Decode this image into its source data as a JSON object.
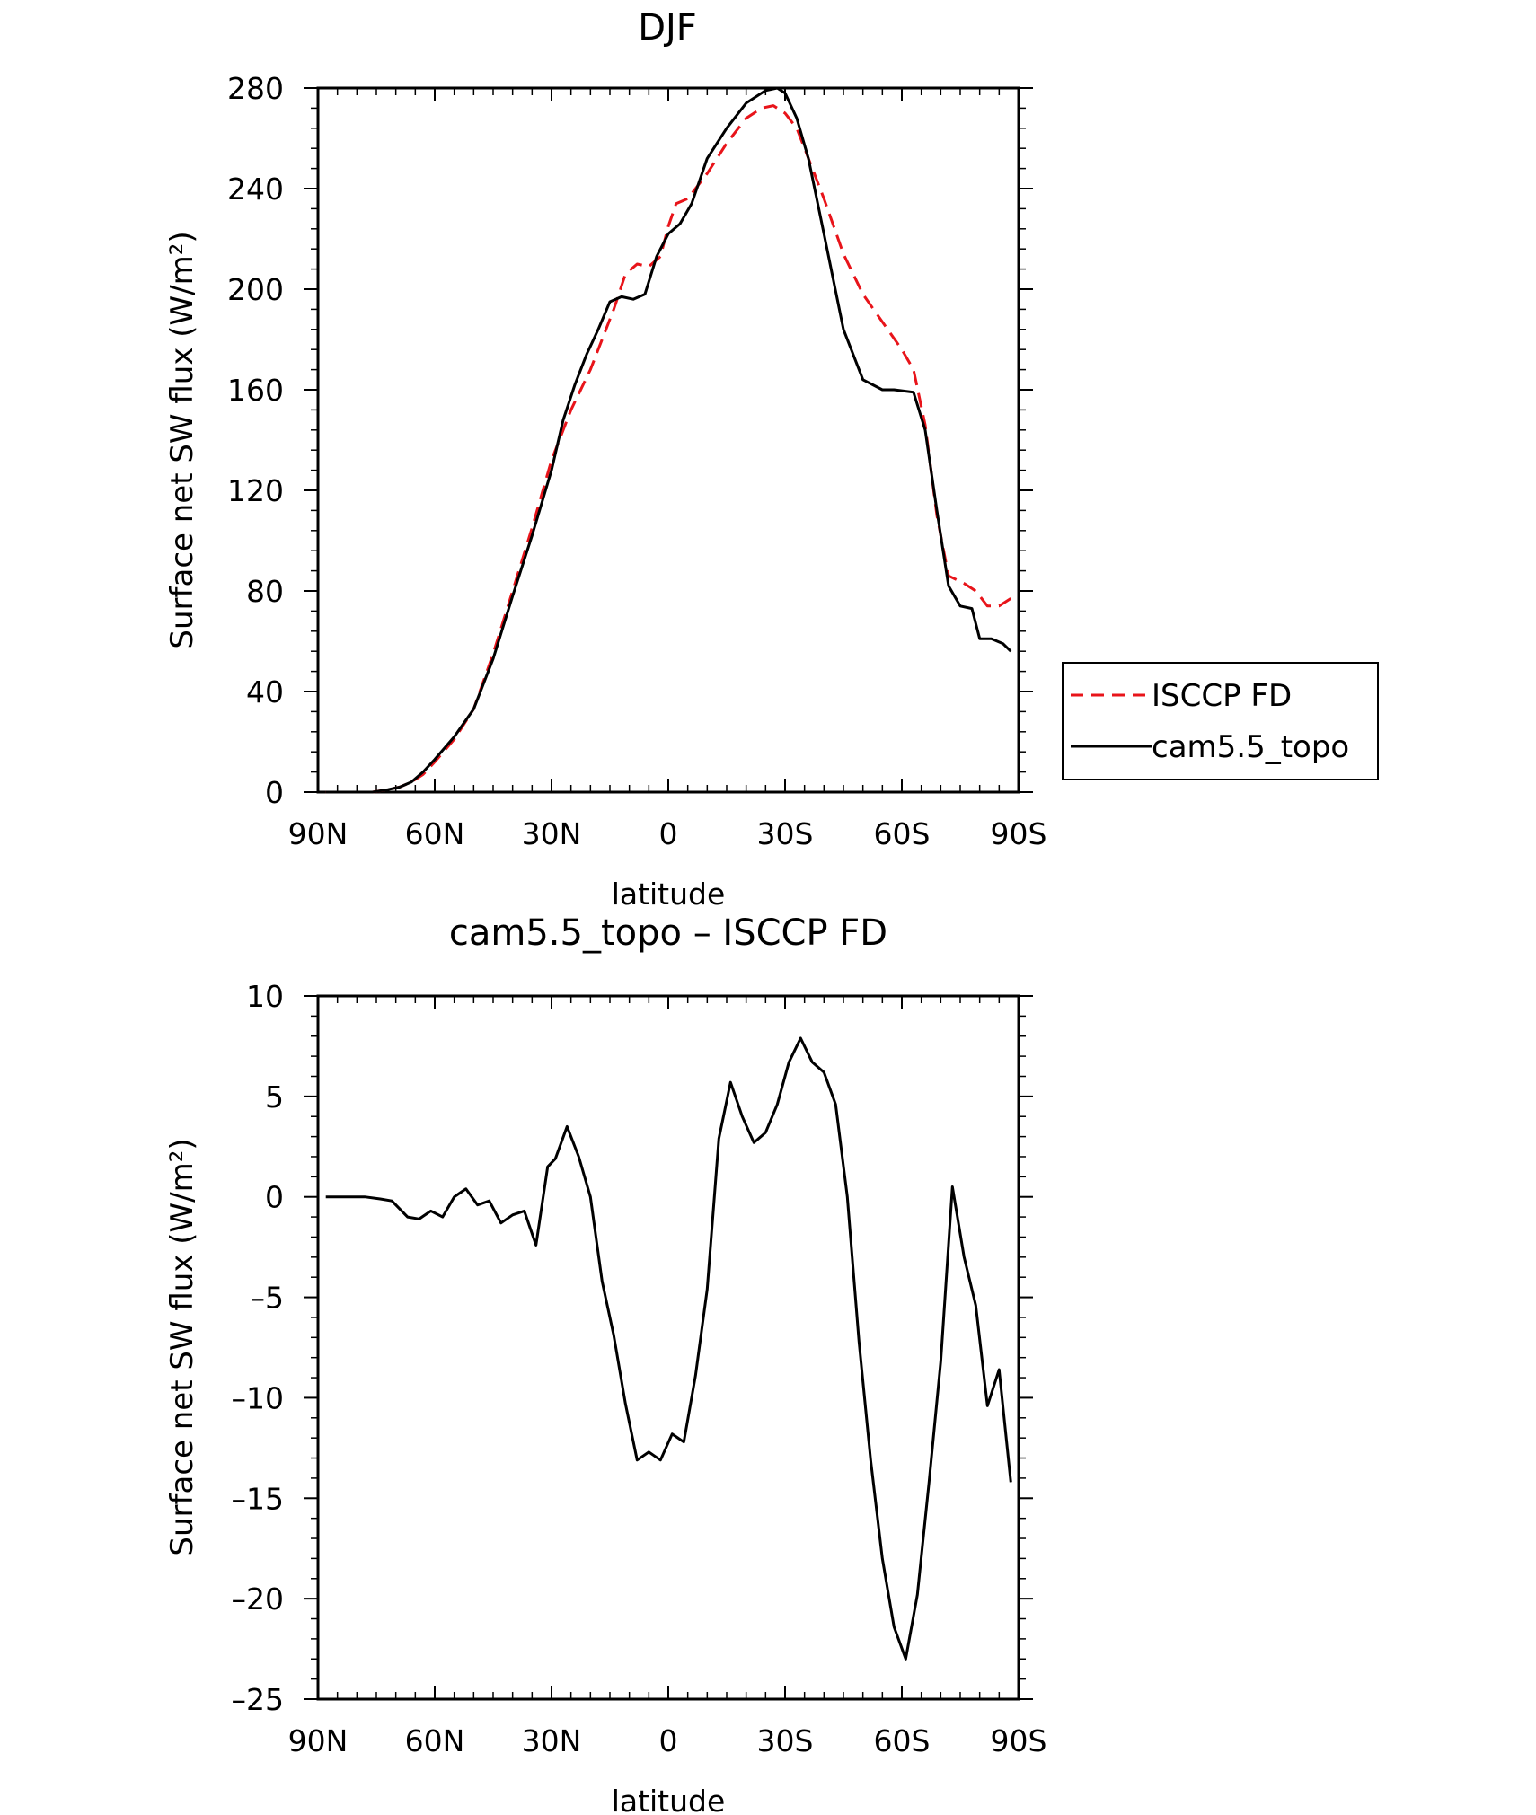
{
  "chart_data": [
    {
      "type": "line",
      "title": "DJF",
      "xlabel": "latitude",
      "ylabel": "Surface net SW flux (W/m²)",
      "xlim": [
        90,
        -90
      ],
      "ylim": [
        0,
        280
      ],
      "x_ticks": [
        {
          "value": 90,
          "label": "90N"
        },
        {
          "value": 60,
          "label": "60N"
        },
        {
          "value": 30,
          "label": "30N"
        },
        {
          "value": 0,
          "label": "0"
        },
        {
          "value": -30,
          "label": "30S"
        },
        {
          "value": -60,
          "label": "60S"
        },
        {
          "value": -90,
          "label": "90S"
        }
      ],
      "y_ticks": [
        {
          "value": 0,
          "label": "0"
        },
        {
          "value": 40,
          "label": "40"
        },
        {
          "value": 80,
          "label": "80"
        },
        {
          "value": 120,
          "label": "120"
        },
        {
          "value": 160,
          "label": "160"
        },
        {
          "value": 200,
          "label": "200"
        },
        {
          "value": 240,
          "label": "240"
        },
        {
          "value": 280,
          "label": "280"
        }
      ],
      "legend": {
        "position": "right"
      },
      "series": [
        {
          "name": "ISCCP FD",
          "color": "#e8141a",
          "dash": "dashed",
          "x": [
            88,
            84,
            80,
            76,
            72,
            69,
            66,
            63,
            60,
            55,
            50,
            45,
            40,
            35,
            30,
            25,
            20,
            17,
            14,
            11,
            8,
            5,
            2,
            0,
            -2,
            -5,
            -10,
            -15,
            -20,
            -24,
            -27,
            -30,
            -33,
            -36,
            -40,
            -45,
            -50,
            -55,
            -60,
            -63,
            -66,
            -69,
            -72,
            -76,
            -79,
            -82,
            -85,
            -88
          ],
          "y": [
            0,
            0,
            0,
            0,
            1,
            2,
            4,
            7,
            12,
            21,
            33,
            55,
            80,
            105,
            132,
            152,
            168,
            180,
            192,
            206,
            210,
            209,
            213,
            225,
            234,
            236,
            246,
            258,
            268,
            272,
            273,
            270,
            264,
            252,
            236,
            214,
            198,
            187,
            176,
            168,
            146,
            110,
            86,
            83,
            80,
            74,
            74,
            77
          ]
        },
        {
          "name": "cam5.5_topo",
          "color": "#000000",
          "dash": "solid",
          "x": [
            88,
            84,
            80,
            76,
            72,
            69,
            66,
            63,
            60,
            55,
            50,
            45,
            40,
            35,
            30,
            27,
            24,
            21,
            18,
            15,
            12,
            9,
            6,
            3,
            0,
            -3,
            -6,
            -10,
            -15,
            -20,
            -25,
            -28,
            -30,
            -33,
            -36,
            -40,
            -45,
            -50,
            -55,
            -58,
            -63,
            -66,
            -69,
            -72,
            -75,
            -78,
            -80,
            -83,
            -86,
            -88
          ],
          "y": [
            0,
            0,
            0,
            0,
            1,
            2,
            4,
            8,
            13,
            22,
            33,
            53,
            78,
            102,
            128,
            148,
            162,
            174,
            184,
            195,
            197,
            196,
            198,
            213,
            222,
            226,
            234,
            252,
            264,
            274,
            279,
            280,
            278,
            268,
            252,
            222,
            184,
            164,
            160,
            160,
            159,
            144,
            112,
            82,
            74,
            73,
            61,
            61,
            59,
            56
          ]
        }
      ]
    },
    {
      "type": "line",
      "title": "cam5.5_topo – ISCCP FD",
      "xlabel": "latitude",
      "ylabel": "Surface net SW flux (W/m²)",
      "xlim": [
        90,
        -90
      ],
      "ylim": [
        -25,
        10
      ],
      "x_ticks": [
        {
          "value": 90,
          "label": "90N"
        },
        {
          "value": 60,
          "label": "60N"
        },
        {
          "value": 30,
          "label": "30N"
        },
        {
          "value": 0,
          "label": "0"
        },
        {
          "value": -30,
          "label": "30S"
        },
        {
          "value": -60,
          "label": "60S"
        },
        {
          "value": -90,
          "label": "90S"
        }
      ],
      "y_ticks": [
        {
          "value": 10,
          "label": "10"
        },
        {
          "value": 5,
          "label": "5"
        },
        {
          "value": 0,
          "label": "0"
        },
        {
          "value": -5,
          "label": "–5"
        },
        {
          "value": -10,
          "label": "–10"
        },
        {
          "value": -15,
          "label": "–15"
        },
        {
          "value": -20,
          "label": "–20"
        },
        {
          "value": -25,
          "label": "–25"
        }
      ],
      "series": [
        {
          "color": "#000000",
          "dash": "solid",
          "x": [
            88,
            82,
            78,
            74,
            71,
            67,
            64,
            61,
            58,
            55,
            52,
            49,
            46,
            43,
            40,
            37,
            34,
            31,
            29,
            26,
            23,
            20,
            17,
            14,
            11,
            8,
            5,
            2,
            -1,
            -4,
            -7,
            -10,
            -13,
            -16,
            -19,
            -22,
            -25,
            -28,
            -31,
            -34,
            -37,
            -40,
            -43,
            -46,
            -49,
            -52,
            -55,
            -58,
            -61,
            -64,
            -67,
            -70,
            -73,
            -76,
            -79,
            -82,
            -85,
            -88
          ],
          "y": [
            0,
            0,
            0,
            -0.1,
            -0.2,
            -1.0,
            -1.1,
            -0.7,
            -1.0,
            0.0,
            0.4,
            -0.4,
            -0.2,
            -1.3,
            -0.9,
            -0.7,
            -2.4,
            1.5,
            1.9,
            3.5,
            2.0,
            0.0,
            -4.2,
            -6.9,
            -10.3,
            -13.1,
            -12.7,
            -13.1,
            -11.8,
            -12.2,
            -8.9,
            -4.6,
            2.9,
            5.7,
            4.0,
            2.7,
            3.2,
            4.6,
            6.7,
            7.9,
            6.7,
            6.2,
            4.6,
            0.0,
            -7.2,
            -13.1,
            -18.0,
            -21.4,
            -23.0,
            -19.8,
            -14.2,
            -8.2,
            0.5,
            -3.0,
            -5.4,
            -10.4,
            -8.6,
            -14.2
          ]
        }
      ]
    }
  ]
}
